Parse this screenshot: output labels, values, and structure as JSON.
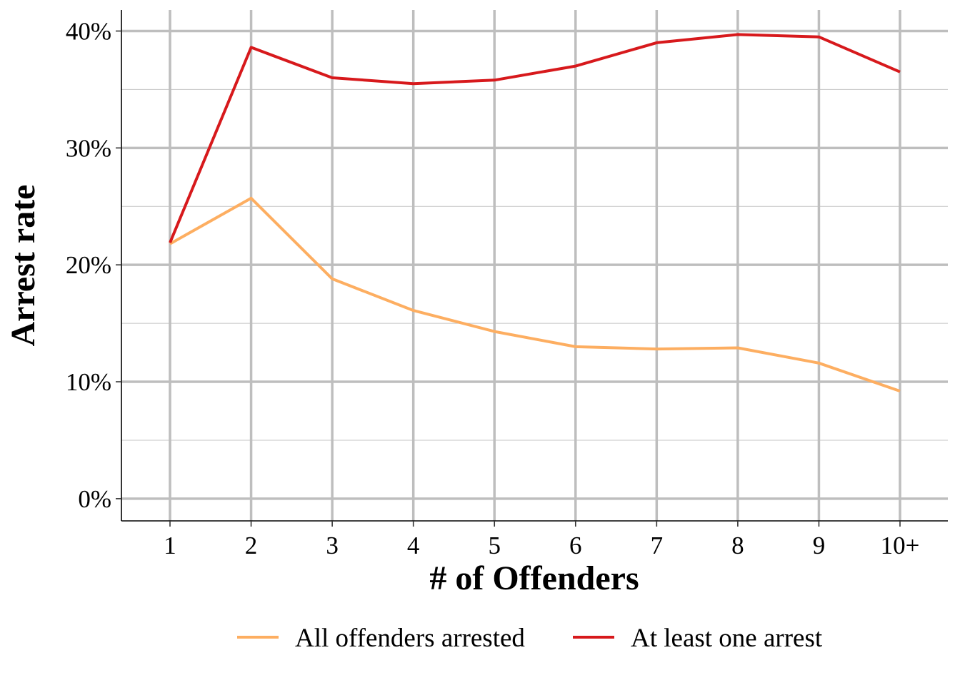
{
  "chart_data": {
    "type": "line",
    "title": "",
    "xlabel": "# of Offenders",
    "ylabel": "Arrest rate",
    "categories": [
      "1",
      "2",
      "3",
      "4",
      "5",
      "6",
      "7",
      "8",
      "9",
      "10+"
    ],
    "yticks": [
      0,
      10,
      20,
      30,
      40
    ],
    "ytick_labels": [
      "0%",
      "10%",
      "20%",
      "30%",
      "40%"
    ],
    "ylim": [
      -1.9,
      41.8
    ],
    "grid": true,
    "legend_position": "bottom",
    "series": [
      {
        "name": "All offenders arrested",
        "color": "#fdae61",
        "values": [
          21.8,
          25.7,
          18.8,
          16.1,
          14.3,
          13.0,
          12.8,
          12.9,
          11.6,
          9.2
        ]
      },
      {
        "name": "At least one arrest",
        "color": "#d7191c",
        "values": [
          21.9,
          38.6,
          36.0,
          35.5,
          35.8,
          37.0,
          39.0,
          39.7,
          39.5,
          36.5
        ]
      }
    ]
  }
}
